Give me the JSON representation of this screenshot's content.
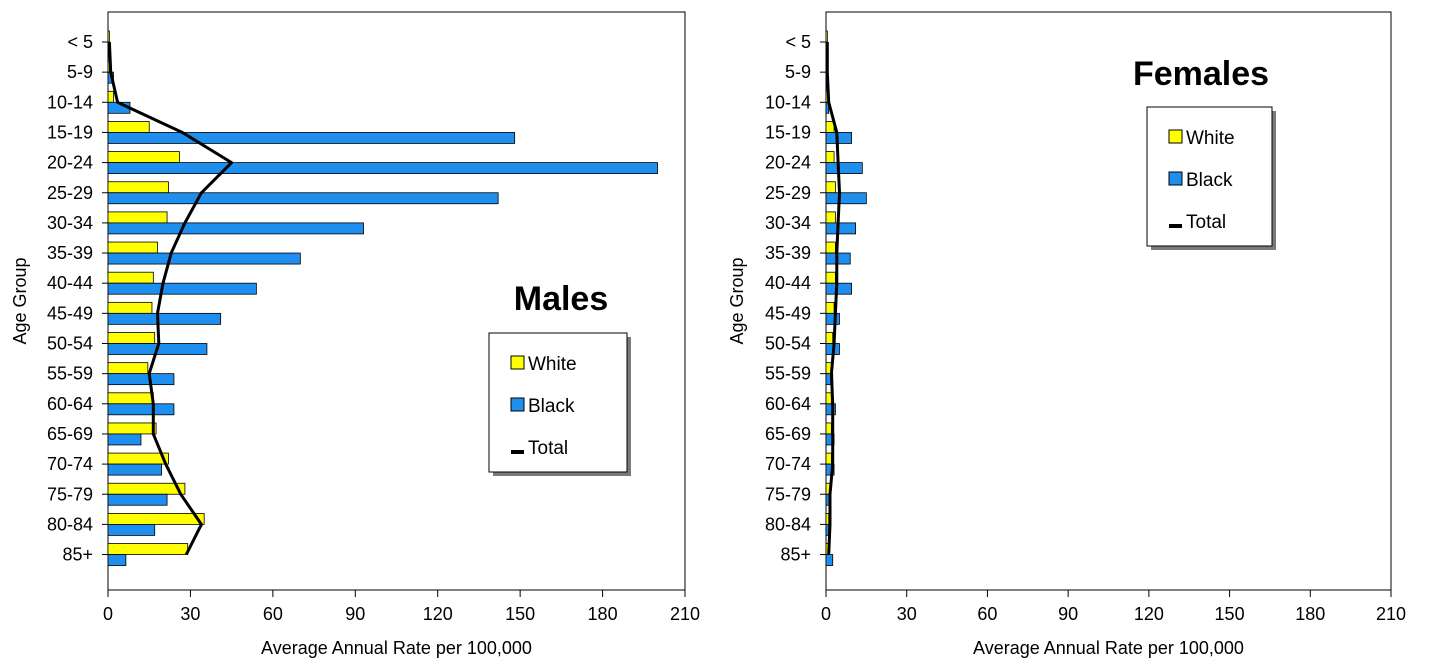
{
  "colors": {
    "white_bar": "#FFFF00",
    "black_bar": "#1E8FEF",
    "total_line": "#000000",
    "axis": "#000000"
  },
  "chart_data": [
    {
      "type": "bar",
      "orientation": "horizontal",
      "title": "Males",
      "xlabel": "Average Annual Rate per 100,000",
      "ylabel": "Age Group",
      "xlim": [
        0,
        210
      ],
      "xticks": [
        "0",
        "30",
        "60",
        "90",
        "120",
        "150",
        "180",
        "210"
      ],
      "legend_position": "right",
      "categories": [
        "< 5",
        "5-9",
        "10-14",
        "15-19",
        "20-24",
        "25-29",
        "30-34",
        "35-39",
        "40-44",
        "45-49",
        "50-54",
        "55-59",
        "60-64",
        "65-69",
        "70-74",
        "75-79",
        "80-84",
        "85+"
      ],
      "series": [
        {
          "name": "White",
          "kind": "bar",
          "values": [
            0.5,
            0.5,
            2,
            15,
            26,
            22,
            21.5,
            18,
            16.5,
            16,
            17,
            14.5,
            16.5,
            17.5,
            22,
            28,
            35,
            29
          ]
        },
        {
          "name": "Black",
          "kind": "bar",
          "values": [
            0.5,
            2,
            8,
            148,
            200,
            142,
            93,
            70,
            54,
            41,
            36,
            24,
            24,
            12,
            19.5,
            21.5,
            17,
            6.5
          ]
        },
        {
          "name": "Total",
          "kind": "line",
          "values": [
            0.5,
            1,
            3.5,
            27,
            45,
            34,
            28,
            23,
            20,
            18,
            18.5,
            15,
            16.5,
            16.5,
            21,
            26.5,
            34,
            28.5
          ]
        }
      ]
    },
    {
      "type": "bar",
      "orientation": "horizontal",
      "title": "Females",
      "xlabel": "Average Annual Rate per 100,000",
      "ylabel": "Age Group",
      "xlim": [
        0,
        210
      ],
      "xticks": [
        "0",
        "30",
        "60",
        "90",
        "120",
        "150",
        "180",
        "210"
      ],
      "legend_position": "top-right",
      "categories": [
        "< 5",
        "5-9",
        "10-14",
        "15-19",
        "20-24",
        "25-29",
        "30-34",
        "35-39",
        "40-44",
        "45-49",
        "50-54",
        "55-59",
        "60-64",
        "65-69",
        "70-74",
        "75-79",
        "80-84",
        "85+"
      ],
      "series": [
        {
          "name": "White",
          "kind": "bar",
          "values": [
            0.5,
            0.5,
            1,
            3,
            3,
            3.5,
            3.5,
            3.5,
            3.5,
            3,
            2.5,
            2,
            2,
            2,
            2,
            1.5,
            1,
            1
          ]
        },
        {
          "name": "Black",
          "kind": "bar",
          "values": [
            0.5,
            0.5,
            1,
            9.5,
            13.5,
            15,
            11,
            9,
            9.5,
            5,
            5,
            2.5,
            3.5,
            3,
            3,
            1.5,
            1,
            2.5
          ]
        },
        {
          "name": "Total",
          "kind": "line",
          "values": [
            0.5,
            0.5,
            1,
            4,
            4.5,
            5,
            4.5,
            4,
            4,
            3.5,
            3,
            2,
            2.5,
            2.5,
            2.5,
            1.5,
            1.5,
            1
          ]
        }
      ]
    }
  ]
}
